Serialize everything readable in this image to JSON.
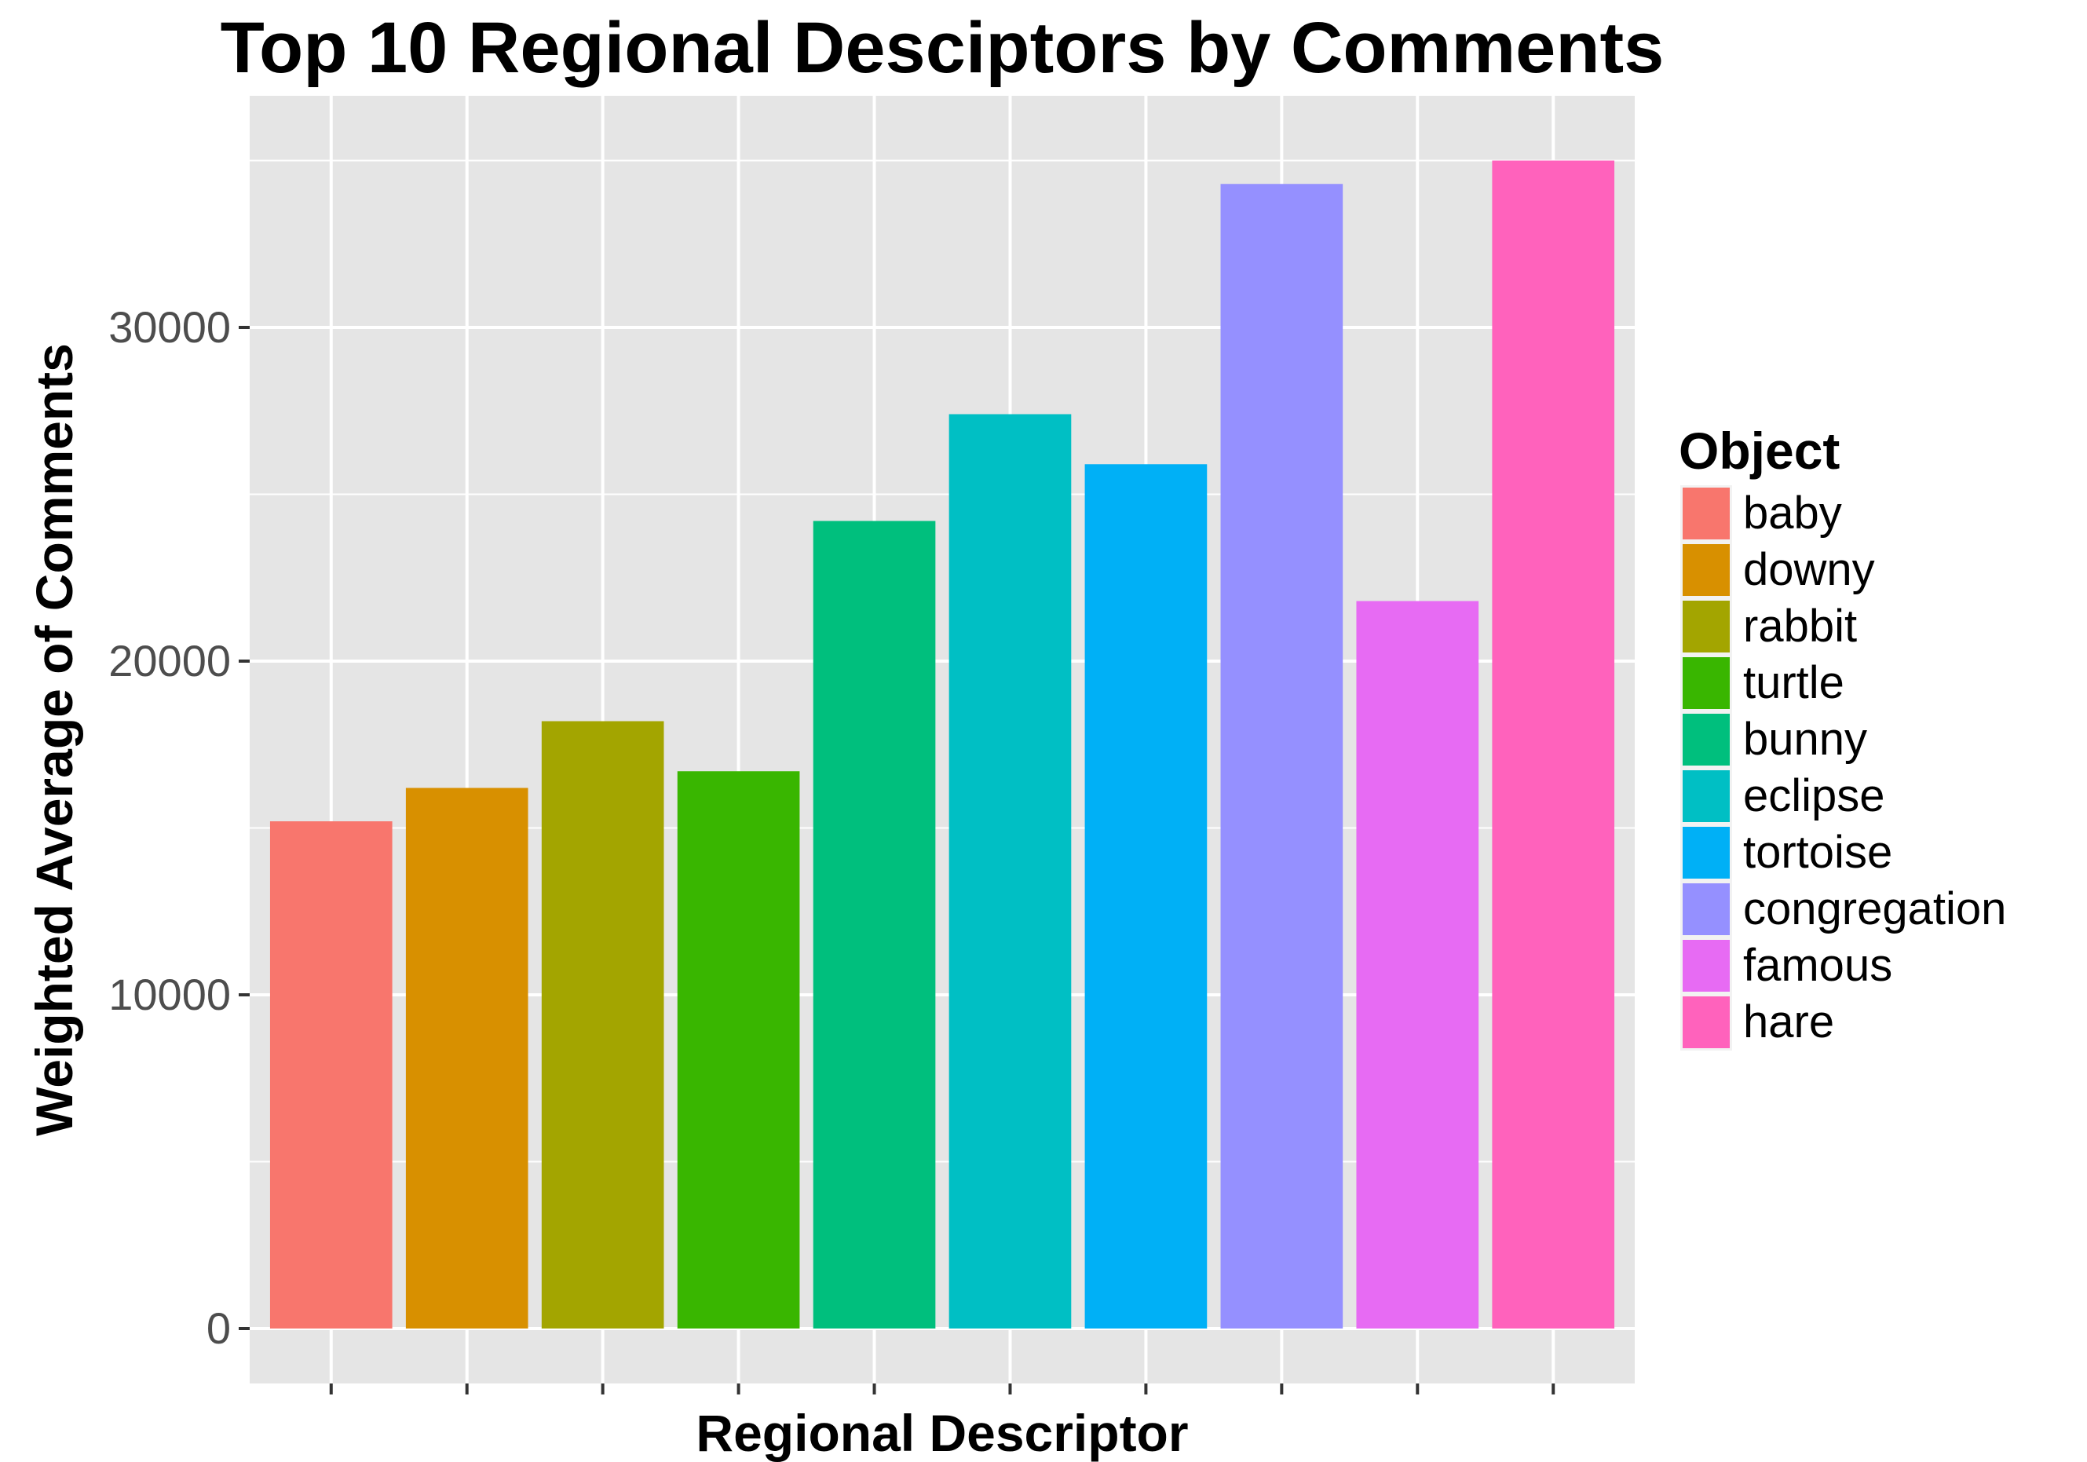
{
  "chart_data": {
    "type": "bar",
    "title": "Top 10 Regional Desciptors by Comments",
    "xlabel": "Regional Descriptor",
    "ylabel": "Weighted Average of Comments",
    "categories": [
      "baby",
      "downy",
      "rabbit",
      "turtle",
      "bunny",
      "eclipse",
      "tortoise",
      "congregation",
      "famous",
      "hare"
    ],
    "values": [
      15200,
      16200,
      18200,
      16700,
      24200,
      27400,
      25900,
      34300,
      21800,
      35000
    ],
    "colors": [
      "#F8766D",
      "#D89000",
      "#A3A500",
      "#39B600",
      "#00BF7D",
      "#00BFC4",
      "#00B0F6",
      "#9590FF",
      "#E76BF3",
      "#FF62BC"
    ],
    "ylim": [
      0,
      37000
    ],
    "yticks": [
      0,
      10000,
      20000,
      30000
    ],
    "grid": true,
    "legend": {
      "title": "Object",
      "position": "right"
    },
    "panel_background": "#E5E5E5",
    "gridline_color": "#FFFFFF"
  }
}
